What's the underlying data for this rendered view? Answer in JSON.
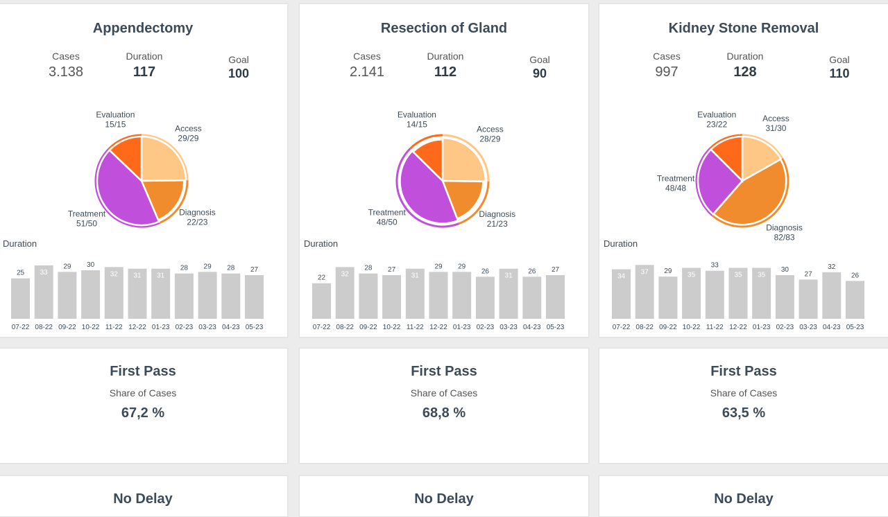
{
  "labels": {
    "cases": "Cases",
    "duration": "Duration",
    "goal": "Goal",
    "duration_chart": "Duration"
  },
  "colors": {
    "access": "#ffc785",
    "diagnosis": "#f08c2e",
    "treatment": "#c04fdc",
    "evaluation": "#ff6a1a",
    "bar": "#cccccc"
  },
  "procedures": [
    {
      "title": "Appendectomy",
      "cases": "3.138",
      "duration": "117",
      "goal": "100",
      "chart_data": {
        "type": "pie",
        "slices": [
          {
            "name": "Access",
            "label": "Access",
            "value_label": "29/29",
            "value": 29,
            "ratio": 1.0
          },
          {
            "name": "Diagnosis",
            "label": "Diagnosis",
            "value_label": "22/23",
            "value": 22,
            "ratio": 0.957
          },
          {
            "name": "Treatment",
            "label": "Treatment",
            "value_label": "51/50",
            "value": 51,
            "ratio": 1.02
          },
          {
            "name": "Evaluation",
            "label": "Evaluation",
            "value_label": "15/15",
            "value": 15,
            "ratio": 1.0
          }
        ]
      },
      "bar_chart": {
        "type": "bar",
        "categories": [
          "07-22",
          "08-22",
          "09-22",
          "10-22",
          "11-22",
          "12-22",
          "01-23",
          "02-23",
          "03-23",
          "04-23",
          "05-23"
        ],
        "values": [
          25,
          33,
          29,
          30,
          32,
          31,
          31,
          28,
          29,
          28,
          27
        ],
        "ylim": [
          0,
          36
        ]
      }
    },
    {
      "title": "Resection of Gland",
      "cases": "2.141",
      "duration": "112",
      "goal": "90",
      "chart_data": {
        "type": "pie",
        "slices": [
          {
            "name": "Access",
            "label": "Access",
            "value_label": "28/29",
            "value": 28,
            "ratio": 0.966
          },
          {
            "name": "Diagnosis",
            "label": "Diagnosis",
            "value_label": "21/23",
            "value": 21,
            "ratio": 0.913
          },
          {
            "name": "Treatment",
            "label": "Treatment",
            "value_label": "48/50",
            "value": 48,
            "ratio": 0.96
          },
          {
            "name": "Evaluation",
            "label": "Evaluation",
            "value_label": "14/15",
            "value": 14,
            "ratio": 0.933
          }
        ]
      },
      "bar_chart": {
        "type": "bar",
        "categories": [
          "07-22",
          "08-22",
          "09-22",
          "10-22",
          "11-22",
          "12-22",
          "01-23",
          "02-23",
          "03-23",
          "04-23",
          "05-23"
        ],
        "values": [
          22,
          32,
          28,
          27,
          31,
          29,
          29,
          26,
          31,
          26,
          27
        ],
        "ylim": [
          0,
          36
        ]
      }
    },
    {
      "title": "Kidney Stone Removal",
      "cases": "997",
      "duration": "128",
      "goal": "110",
      "chart_data": {
        "type": "pie",
        "slices": [
          {
            "name": "Access",
            "label": "Access",
            "value_label": "31/30",
            "value": 31,
            "ratio": 1.03
          },
          {
            "name": "Diagnosis",
            "label": "Diagnosis",
            "value_label": "82/83",
            "value": 82,
            "ratio": 0.988
          },
          {
            "name": "Treatment",
            "label": "Treatment",
            "value_label": "48/48",
            "value": 48,
            "ratio": 1.0
          },
          {
            "name": "Evaluation",
            "label": "Evaluation",
            "value_label": "23/22",
            "value": 23,
            "ratio": 1.045
          }
        ]
      },
      "bar_chart": {
        "type": "bar",
        "categories": [
          "07-22",
          "08-22",
          "09-22",
          "10-22",
          "11-22",
          "12-22",
          "01-23",
          "02-23",
          "03-23",
          "04-23",
          "05-23"
        ],
        "values": [
          34,
          37,
          29,
          35,
          33,
          35,
          35,
          30,
          27,
          32,
          26
        ],
        "ylim": [
          0,
          40
        ]
      }
    }
  ],
  "first_pass": [
    {
      "title": "First Pass",
      "subtitle": "Share of Cases",
      "value": "67,2 %"
    },
    {
      "title": "First Pass",
      "subtitle": "Share of Cases",
      "value": "68,8 %"
    },
    {
      "title": "First Pass",
      "subtitle": "Share of Cases",
      "value": "63,5 %"
    }
  ],
  "no_delay": [
    {
      "title": "No Delay"
    },
    {
      "title": "No Delay"
    },
    {
      "title": "No Delay"
    }
  ]
}
